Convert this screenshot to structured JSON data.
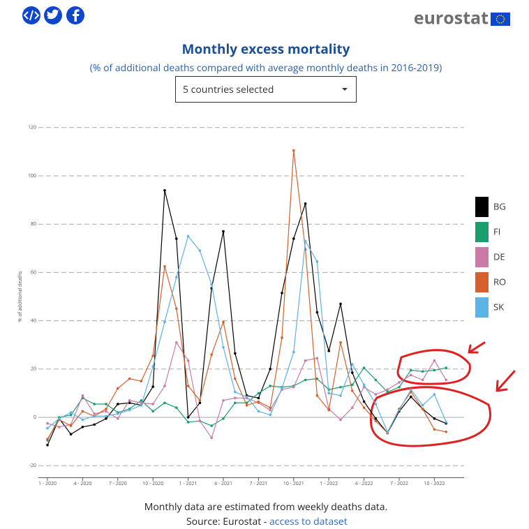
{
  "header": {
    "logo": "eurostat"
  },
  "chart_data": {
    "type": "line",
    "title": "Monthly excess mortality",
    "subtitle": "(% of additional deaths compared with average monthly deaths in 2016-2019)",
    "dropdown": "5 countries selected",
    "y_label": "% of additional deaths",
    "categories": [
      "1 - 2020",
      null,
      null,
      "4 - 2020",
      null,
      null,
      "7 - 2020",
      null,
      null,
      "10 - 2020",
      null,
      null,
      "1 - 2021",
      null,
      null,
      "4 - 2021",
      null,
      null,
      "7 - 2021",
      null,
      null,
      "10 - 2021",
      null,
      null,
      "1 - 2022",
      null,
      null,
      "4 - 2022",
      null,
      null,
      "7 - 2022",
      null,
      null,
      "10 - 2022",
      null
    ],
    "ylim": [
      -25,
      125
    ],
    "yticks": [
      -20,
      0,
      20,
      40,
      60,
      80,
      100,
      120
    ],
    "grid": true,
    "series": [
      {
        "name": "BG",
        "color": "#000000",
        "values": [
          -11.5,
          -0.5,
          -7,
          -4,
          -3,
          -0.5,
          5.5,
          6,
          5,
          12.7,
          94,
          74,
          0,
          6,
          53.5,
          77,
          26.5,
          9,
          8,
          20,
          51.5,
          74,
          88.5,
          43.5,
          27.5,
          47,
          18.5,
          6.5,
          -0.5,
          -6.5,
          2.5,
          8.5,
          3.5,
          -0.5,
          -2.5
        ]
      },
      {
        "name": "FI",
        "color": "#1a9e6e",
        "values": [
          -9.5,
          0,
          1,
          8,
          5.5,
          5.5,
          2,
          3.5,
          7,
          2.5,
          6,
          4,
          -2,
          -1.5,
          -3.5,
          -0.5,
          6,
          6,
          10,
          13,
          12.5,
          13,
          15.5,
          16,
          11.5,
          12.5,
          13.5,
          20.5,
          15.5,
          10.5,
          12.5,
          19.5,
          19,
          19.5,
          20.5
        ]
      },
      {
        "name": "DE",
        "color": "#cc79a7",
        "values": [
          -2.5,
          -4,
          -3,
          9,
          1.5,
          2.5,
          -0.5,
          7,
          6,
          5.5,
          13,
          31,
          23.5,
          -1.5,
          -8.5,
          7,
          8,
          8,
          6,
          3,
          11.5,
          12.5,
          23.5,
          24.5,
          3.5,
          -1,
          4,
          12.5,
          9.5,
          11.5,
          14.5,
          17.5,
          15.5,
          23.5,
          15.5
        ]
      },
      {
        "name": "RO",
        "color": "#d5602b",
        "values": [
          -9,
          -1,
          -3.5,
          2.5,
          0.5,
          3.5,
          12,
          16,
          15,
          25.5,
          62.5,
          45,
          13,
          7,
          26,
          39.5,
          16,
          5,
          6.5,
          4,
          33,
          110.5,
          69.5,
          9,
          3,
          31,
          11,
          4,
          -1.5,
          -6.5,
          3.5,
          10.5,
          3.5,
          -5,
          -6
        ]
      },
      {
        "name": "SK",
        "color": "#5cb3e5",
        "values": [
          -4.5,
          -0.5,
          2,
          -1,
          0.5,
          0.5,
          1.5,
          3,
          5,
          21,
          39.5,
          58,
          75,
          69,
          55,
          29,
          10.5,
          8.5,
          2.5,
          1,
          12,
          27,
          73,
          64.5,
          10,
          9,
          22,
          13.5,
          5.5,
          -6,
          3,
          11.5,
          5,
          9.5,
          -2
        ]
      }
    ]
  },
  "footer": {
    "note": "Monthly data are estimated from weekly deaths data.",
    "source": "Source: Eurostat - ",
    "link": "access to dataset"
  }
}
